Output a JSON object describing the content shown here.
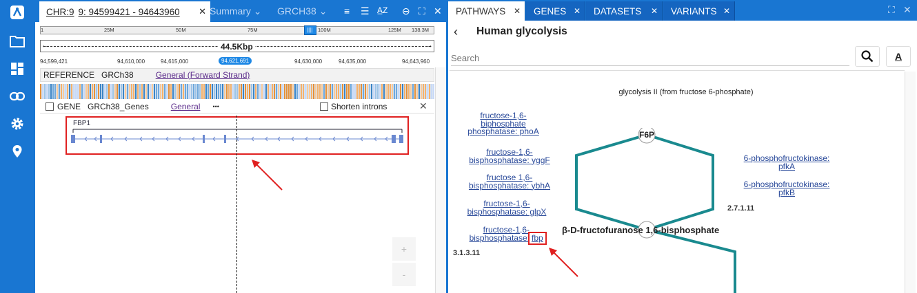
{
  "left": {
    "tab": {
      "chr": "CHR:9",
      "range": "9: 94599421 - 94643960"
    },
    "header_items": [
      "Summary",
      "GRCH38"
    ],
    "ruler": {
      "labels": [
        "1",
        "25M",
        "50M",
        "75M",
        "100M",
        "125M",
        "138.3M"
      ],
      "selection_label": "||||"
    },
    "scale": {
      "label": "44.5Kbp",
      "coords": [
        "94,599,421",
        "94,610,000",
        "94,615,000",
        "94,630,000",
        "94,635,000",
        "94,643,960"
      ],
      "current": "94,621,691"
    },
    "reference": {
      "label": "REFERENCE",
      "genome": "GRCh38",
      "strand": "General (Forward Strand)"
    },
    "gene_track": {
      "label": "GENE",
      "name": "GRCh38_Genes",
      "type": "General",
      "more": "•••",
      "shorten": "Shorten introns",
      "gene": "FBP1"
    },
    "zoom": {
      "in": "+",
      "out": "-"
    }
  },
  "right": {
    "tabs": [
      {
        "label": "PATHWAYS",
        "active": true
      },
      {
        "label": "GENES",
        "active": false
      },
      {
        "label": "DATASETS",
        "active": false
      },
      {
        "label": "VARIANTS",
        "active": false
      }
    ],
    "title": "Human glycolysis",
    "search_placeholder": "Search",
    "diagram": {
      "title": "glycolysis II (from fructose 6-phosphate)",
      "node_top": "F6P",
      "node_mid": "β-D-fructofuranose 1,6-bisphosphate",
      "ec_right": "2.7.1.11",
      "ec_left": "3.1.3.11",
      "enzymes_left": [
        [
          "fructose-1,6-",
          "biphosphate",
          "phosphatase: phoA"
        ],
        [
          "fructose-1,6-",
          "bisphosphatase: yggF"
        ],
        [
          "fructose 1,6-",
          "bisphosphatase: ybhA"
        ],
        [
          "fructose-1,6-",
          "bisphosphatase: glpX"
        ],
        [
          "fructose-1,6-",
          "bisphosphatase:"
        ]
      ],
      "fbp": "fbp",
      "enzymes_right": [
        [
          "6-phosphofructokinase:",
          "pfkA"
        ],
        [
          "6-phosphofructokinase:",
          "pfkB"
        ]
      ]
    }
  },
  "colors": {
    "brand": "#1976d2",
    "pathway": "#1a8a8f",
    "highlight": "#e02020"
  }
}
